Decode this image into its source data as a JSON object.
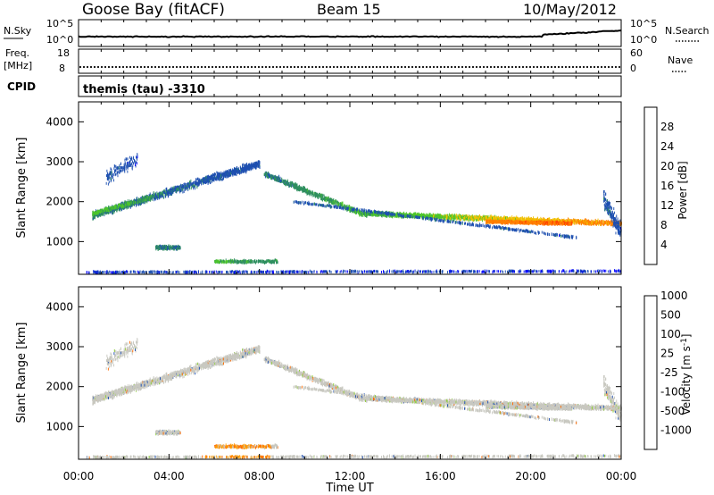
{
  "header": {
    "station": "Goose Bay (fitACF)",
    "beam": "Beam 15",
    "date": "10/May/2012"
  },
  "top_panels": {
    "nsky_label": "N.Sky",
    "nsky_ticks": [
      "10^5",
      "10^0"
    ],
    "nsearch_label": "N.Search",
    "freq_label_1": "Freq.",
    "freq_label_2": "[MHz]",
    "freq_ticks": [
      "18",
      "8"
    ],
    "nave_label": "Nave",
    "nave_ticks": [
      "60",
      "0"
    ],
    "cpid_label": "CPID",
    "cpid_value": "themis (tau) -3310"
  },
  "colors": {
    "power": [
      "#0000ff",
      "#1d4fb0",
      "#2f8f5f",
      "#4cc52b",
      "#f0c000",
      "#ff8000",
      "#ff4000",
      "#ff0000"
    ],
    "velocity": [
      "#ff0000",
      "#ff6a00",
      "#ff9900",
      "#c8c8c0",
      "#8fcf3a",
      "#3b9a2a",
      "#1f4fb0",
      "#0000c0"
    ]
  },
  "chart_data": [
    {
      "type": "heatmap",
      "ylabel": "Slant Range [km]",
      "xlabel": "",
      "x_ticks": [
        "00:00",
        "04:00",
        "08:00",
        "12:00",
        "16:00",
        "20:00",
        "00:00"
      ],
      "y_ticks": [
        1000,
        2000,
        3000,
        4000
      ],
      "ylim": [
        180,
        4500
      ],
      "xlim_hours": [
        0,
        24
      ],
      "colorbar": {
        "label": "Power [dB]",
        "ticks": [
          "4",
          "8",
          "12",
          "16",
          "20",
          "24",
          "28"
        ],
        "range": [
          0,
          32
        ]
      },
      "features": [
        {
          "name": "main echo band",
          "t_start_hours": 0.7,
          "t_end_hours": 8.0,
          "range_start_km": 1700,
          "range_end_km": 2900,
          "power_db": 8
        },
        {
          "name": "post-midnight descending band",
          "t_start_hours": 8.2,
          "t_end_hours": 24.0,
          "range_start_km": 2700,
          "range_end_km": 1400,
          "power_db": 18
        },
        {
          "name": "near-range echoes",
          "t_start_hours": 0.3,
          "t_end_hours": 24.0,
          "range_km": 300,
          "power_db": 5
        }
      ]
    },
    {
      "type": "heatmap",
      "ylabel": "Slant Range [km]",
      "xlabel": "Time UT",
      "x_ticks": [
        "00:00",
        "04:00",
        "08:00",
        "12:00",
        "16:00",
        "20:00",
        "00:00"
      ],
      "y_ticks": [
        1000,
        2000,
        3000,
        4000
      ],
      "ylim": [
        180,
        4500
      ],
      "xlim_hours": [
        0,
        24
      ],
      "colorbar": {
        "label": "Velocity [m s^-1]",
        "ticks": [
          "1000",
          "500",
          "100",
          "25",
          "-25",
          "-100",
          "-500",
          "-1000"
        ]
      },
      "features": [
        {
          "name": "ground scatter band",
          "velocity_ms": 0
        }
      ]
    }
  ]
}
